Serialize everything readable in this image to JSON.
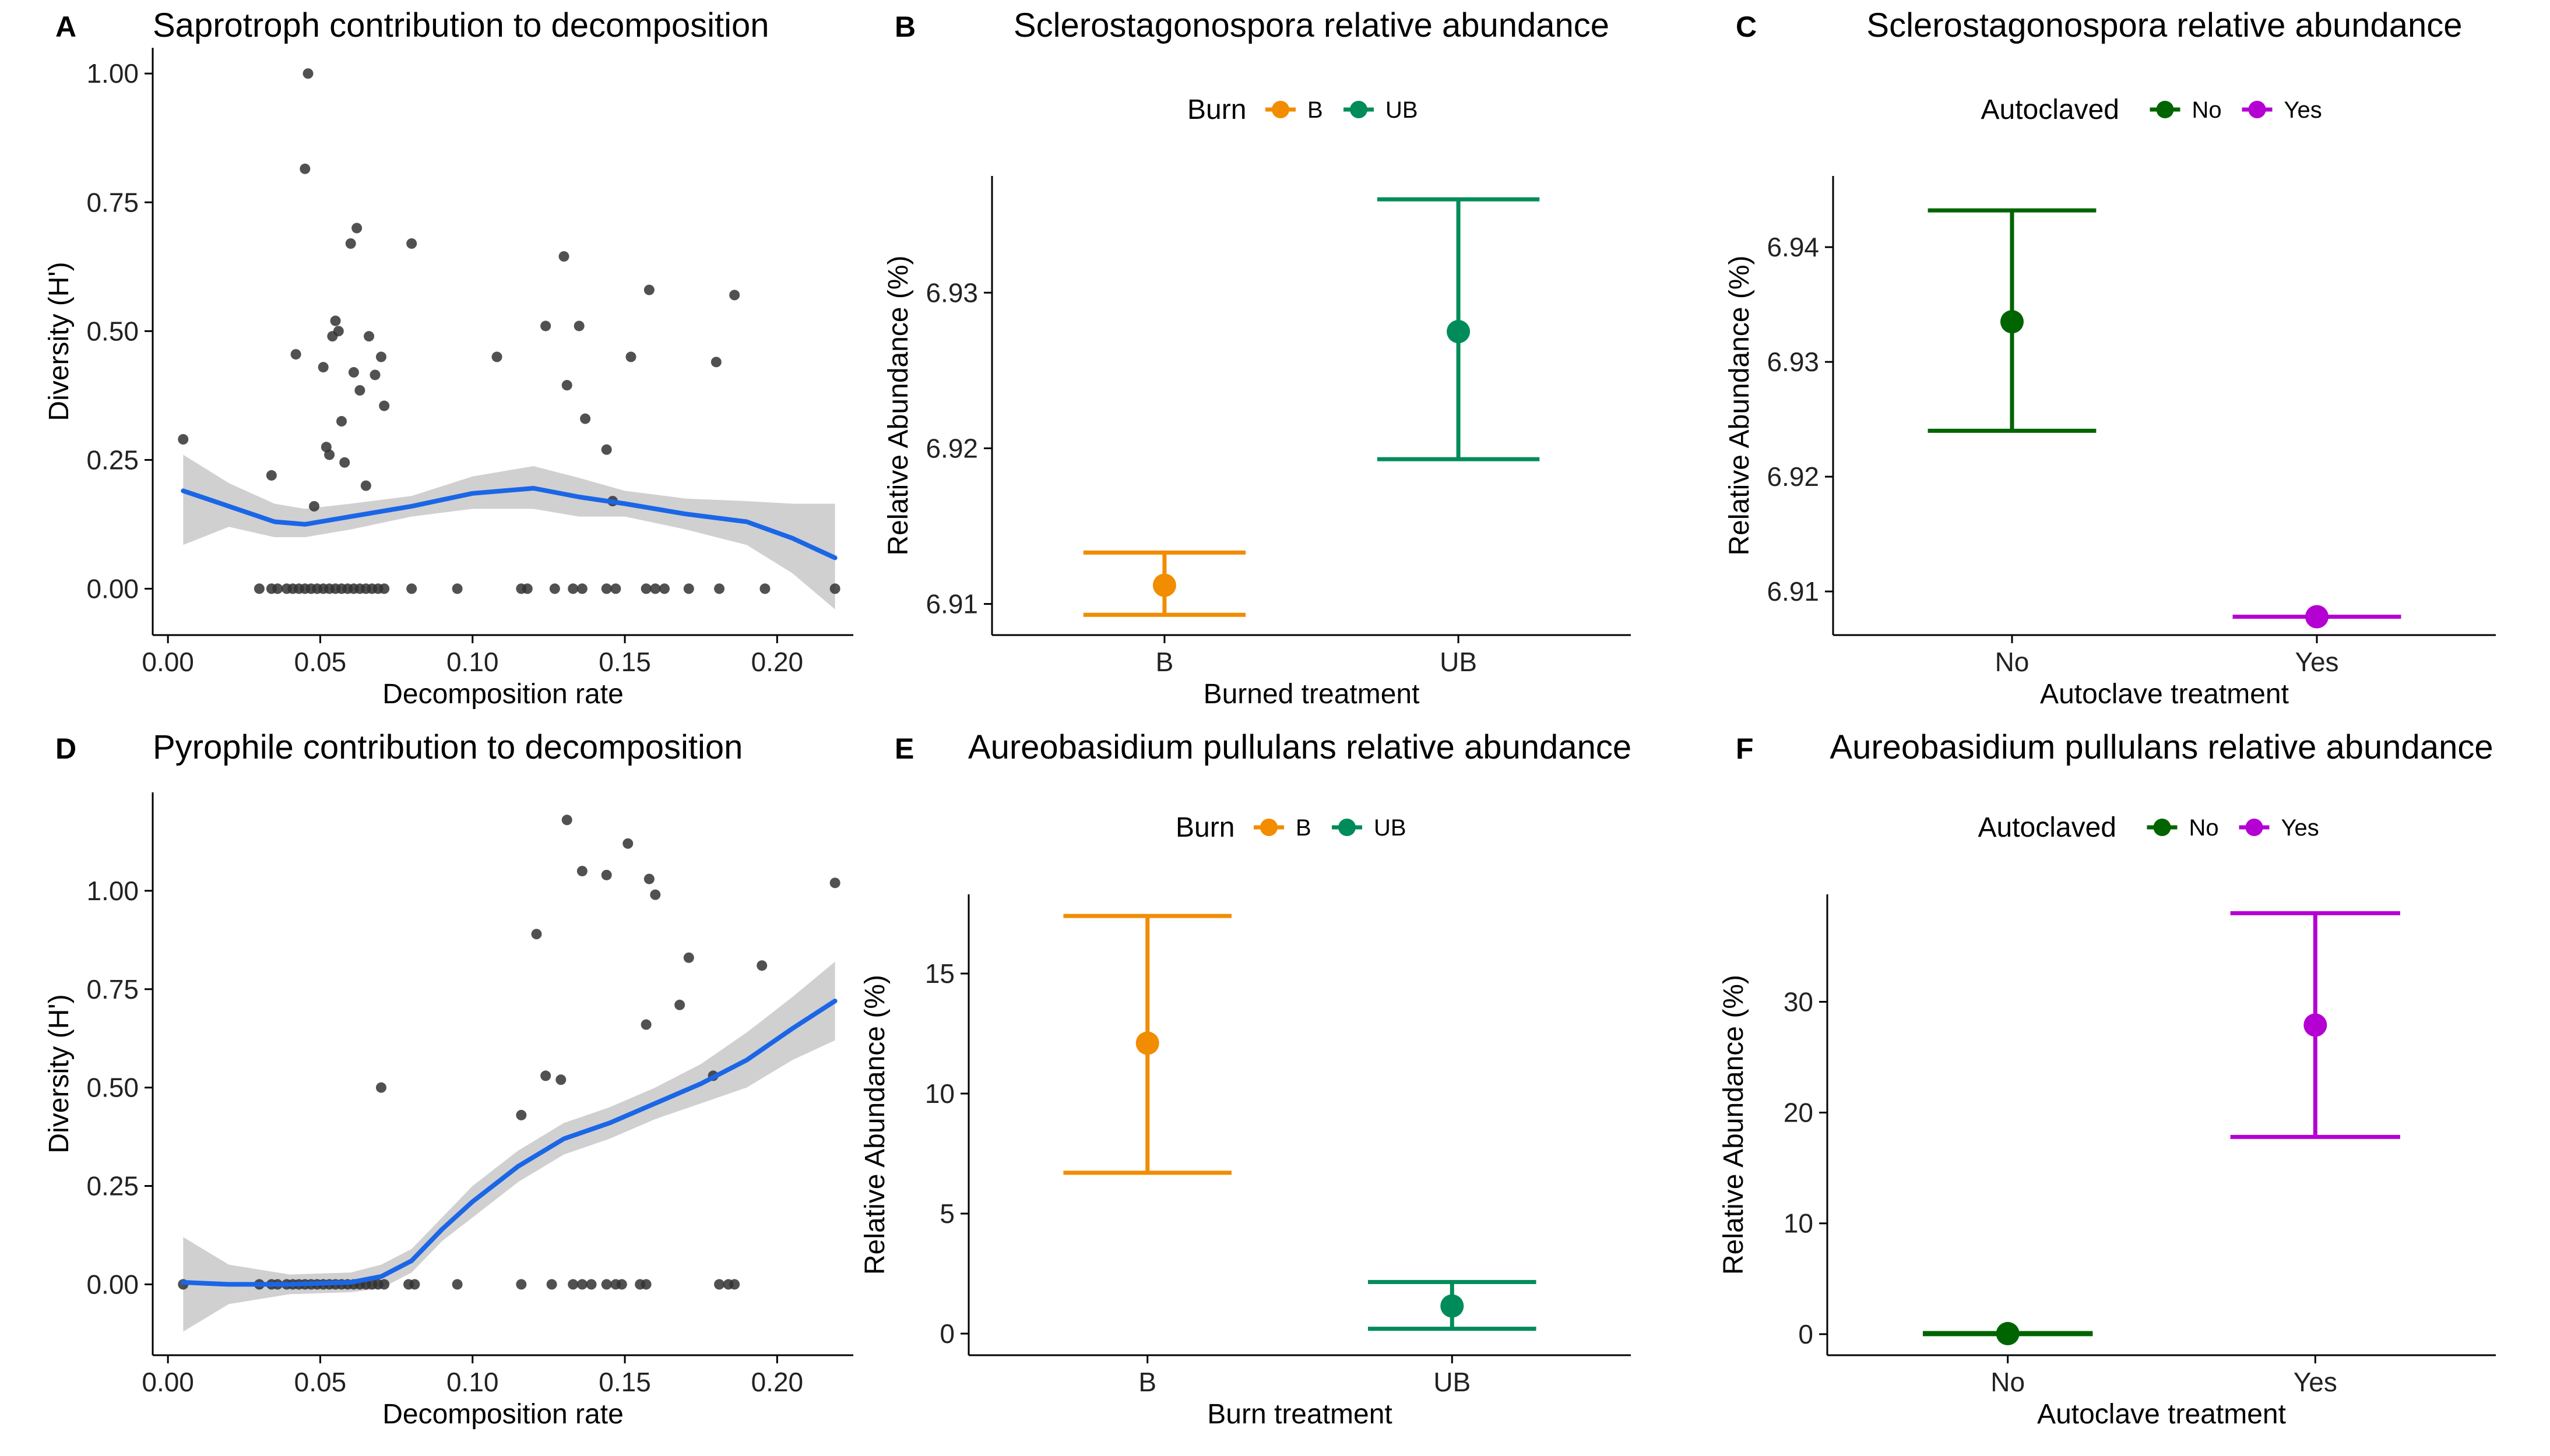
{
  "chart_data": [
    {
      "panel": "A",
      "type": "scatter",
      "title": "Saprotroph contribution to decomposition",
      "xlabel": "Decomposition rate",
      "ylabel": "Diversity (H')",
      "xlim": [
        -0.005,
        0.225
      ],
      "ylim": [
        -0.09,
        1.05
      ],
      "xticks": [
        0.0,
        0.05,
        0.1,
        0.15,
        0.2
      ],
      "xtick_labels": [
        "0.00",
        "0.05",
        "0.10",
        "0.15",
        "0.20"
      ],
      "yticks": [
        0.0,
        0.25,
        0.5,
        0.75,
        1.0
      ],
      "ytick_labels": [
        "0.00",
        "0.25",
        "0.50",
        "0.75",
        "1.00"
      ],
      "points": [
        [
          0.005,
          0.29
        ],
        [
          0.034,
          0.22
        ],
        [
          0.042,
          0.455
        ],
        [
          0.045,
          0.815
        ],
        [
          0.046,
          1.0
        ],
        [
          0.048,
          0.16
        ],
        [
          0.051,
          0.43
        ],
        [
          0.052,
          0.275
        ],
        [
          0.053,
          0.26
        ],
        [
          0.054,
          0.49
        ],
        [
          0.055,
          0.52
        ],
        [
          0.056,
          0.5
        ],
        [
          0.057,
          0.325
        ],
        [
          0.058,
          0.245
        ],
        [
          0.06,
          0.67
        ],
        [
          0.061,
          0.42
        ],
        [
          0.062,
          0.7
        ],
        [
          0.063,
          0.385
        ],
        [
          0.065,
          0.2
        ],
        [
          0.066,
          0.49
        ],
        [
          0.068,
          0.415
        ],
        [
          0.07,
          0.45
        ],
        [
          0.071,
          0.355
        ],
        [
          0.08,
          0.67
        ],
        [
          0.108,
          0.45
        ],
        [
          0.124,
          0.51
        ],
        [
          0.13,
          0.645
        ],
        [
          0.131,
          0.395
        ],
        [
          0.135,
          0.51
        ],
        [
          0.137,
          0.33
        ],
        [
          0.144,
          0.27
        ],
        [
          0.146,
          0.17
        ],
        [
          0.152,
          0.45
        ],
        [
          0.158,
          0.58
        ],
        [
          0.18,
          0.44
        ],
        [
          0.186,
          0.57
        ],
        [
          0.03,
          0.0
        ],
        [
          0.034,
          0.0
        ],
        [
          0.036,
          0.0
        ],
        [
          0.039,
          0.0
        ],
        [
          0.041,
          0.0
        ],
        [
          0.043,
          0.0
        ],
        [
          0.045,
          0.0
        ],
        [
          0.047,
          0.0
        ],
        [
          0.049,
          0.0
        ],
        [
          0.051,
          0.0
        ],
        [
          0.053,
          0.0
        ],
        [
          0.055,
          0.0
        ],
        [
          0.057,
          0.0
        ],
        [
          0.059,
          0.0
        ],
        [
          0.061,
          0.0
        ],
        [
          0.063,
          0.0
        ],
        [
          0.065,
          0.0
        ],
        [
          0.067,
          0.0
        ],
        [
          0.069,
          0.0
        ],
        [
          0.071,
          0.0
        ],
        [
          0.08,
          0.0
        ],
        [
          0.095,
          0.0
        ],
        [
          0.116,
          0.0
        ],
        [
          0.118,
          0.0
        ],
        [
          0.127,
          0.0
        ],
        [
          0.133,
          0.0
        ],
        [
          0.136,
          0.0
        ],
        [
          0.144,
          0.0
        ],
        [
          0.147,
          0.0
        ],
        [
          0.157,
          0.0
        ],
        [
          0.16,
          0.0
        ],
        [
          0.163,
          0.0
        ],
        [
          0.171,
          0.0
        ],
        [
          0.181,
          0.0
        ],
        [
          0.196,
          0.0
        ],
        [
          0.219,
          0.0
        ]
      ],
      "smooth": [
        [
          0.005,
          0.19
        ],
        [
          0.02,
          0.16
        ],
        [
          0.035,
          0.13
        ],
        [
          0.045,
          0.125
        ],
        [
          0.06,
          0.14
        ],
        [
          0.08,
          0.16
        ],
        [
          0.1,
          0.185
        ],
        [
          0.12,
          0.195
        ],
        [
          0.135,
          0.178
        ],
        [
          0.15,
          0.165
        ],
        [
          0.17,
          0.145
        ],
        [
          0.19,
          0.13
        ],
        [
          0.205,
          0.098
        ],
        [
          0.219,
          0.06
        ]
      ],
      "band_upper": [
        [
          0.005,
          0.26
        ],
        [
          0.02,
          0.205
        ],
        [
          0.035,
          0.165
        ],
        [
          0.045,
          0.155
        ],
        [
          0.06,
          0.165
        ],
        [
          0.08,
          0.18
        ],
        [
          0.1,
          0.218
        ],
        [
          0.12,
          0.238
        ],
        [
          0.135,
          0.215
        ],
        [
          0.15,
          0.19
        ],
        [
          0.17,
          0.175
        ],
        [
          0.19,
          0.17
        ],
        [
          0.205,
          0.165
        ],
        [
          0.219,
          0.165
        ]
      ],
      "band_lower": [
        [
          0.005,
          0.085
        ],
        [
          0.02,
          0.12
        ],
        [
          0.035,
          0.1
        ],
        [
          0.045,
          0.1
        ],
        [
          0.06,
          0.115
        ],
        [
          0.08,
          0.14
        ],
        [
          0.1,
          0.155
        ],
        [
          0.12,
          0.155
        ],
        [
          0.135,
          0.14
        ],
        [
          0.15,
          0.14
        ],
        [
          0.17,
          0.115
        ],
        [
          0.19,
          0.085
        ],
        [
          0.205,
          0.03
        ],
        [
          0.219,
          -0.04
        ]
      ],
      "colors": {
        "points": "#333333",
        "smooth": "#1a66e6",
        "band": "#c8c8c8"
      }
    },
    {
      "panel": "B",
      "type": "errorbar",
      "title": "Sclerostagonospora relative abundance",
      "xlabel": "Burned treatment",
      "ylabel": "Relative Abundance (%)",
      "legend_title": "Burn",
      "categories": [
        "B",
        "UB"
      ],
      "means": [
        6.9112,
        6.9275
      ],
      "lower": [
        6.9093,
        6.9193
      ],
      "upper": [
        6.9133,
        6.936
      ],
      "ylim": [
        6.908,
        6.9375
      ],
      "yticks": [
        6.91,
        6.92,
        6.93
      ],
      "ytick_labels": [
        "6.91",
        "6.92",
        "6.93"
      ],
      "colors": [
        "#f28c00",
        "#008c5a"
      ]
    },
    {
      "panel": "C",
      "type": "errorbar",
      "title": "Sclerostagonospora relative abundance",
      "xlabel": "Autoclave treatment",
      "ylabel": "Relative Abundance (%)",
      "legend_title": "Autoclaved",
      "categories": [
        "No",
        "Yes"
      ],
      "means": [
        6.9335,
        6.9078
      ],
      "lower": [
        6.924,
        6.9078
      ],
      "upper": [
        6.9432,
        6.9078
      ],
      "ylim": [
        6.9062,
        6.9462
      ],
      "yticks": [
        6.91,
        6.92,
        6.93,
        6.94
      ],
      "ytick_labels": [
        "6.91",
        "6.92",
        "6.93",
        "6.94"
      ],
      "colors": [
        "#006400",
        "#b400d2"
      ]
    },
    {
      "panel": "D",
      "type": "scatter",
      "title": "Pyrophile contribution to decomposition",
      "xlabel": "Decomposition rate",
      "ylabel": "Diversity (H')",
      "xlim": [
        -0.005,
        0.225
      ],
      "ylim": [
        -0.18,
        1.25
      ],
      "xticks": [
        0.0,
        0.05,
        0.1,
        0.15,
        0.2
      ],
      "xtick_labels": [
        "0.00",
        "0.05",
        "0.10",
        "0.15",
        "0.20"
      ],
      "yticks": [
        0.0,
        0.25,
        0.5,
        0.75,
        1.0
      ],
      "ytick_labels": [
        "0.00",
        "0.25",
        "0.50",
        "0.75",
        "1.00"
      ],
      "points": [
        [
          0.07,
          0.5
        ],
        [
          0.116,
          0.43
        ],
        [
          0.121,
          0.89
        ],
        [
          0.124,
          0.53
        ],
        [
          0.129,
          0.52
        ],
        [
          0.131,
          1.18
        ],
        [
          0.136,
          1.05
        ],
        [
          0.144,
          1.04
        ],
        [
          0.151,
          1.12
        ],
        [
          0.157,
          0.66
        ],
        [
          0.158,
          1.03
        ],
        [
          0.16,
          0.99
        ],
        [
          0.168,
          0.71
        ],
        [
          0.171,
          0.83
        ],
        [
          0.179,
          0.53
        ],
        [
          0.195,
          0.81
        ],
        [
          0.219,
          1.02
        ],
        [
          0.005,
          0.0
        ],
        [
          0.03,
          0.0
        ],
        [
          0.034,
          0.0
        ],
        [
          0.036,
          0.0
        ],
        [
          0.039,
          0.0
        ],
        [
          0.041,
          0.0
        ],
        [
          0.043,
          0.0
        ],
        [
          0.045,
          0.0
        ],
        [
          0.047,
          0.0
        ],
        [
          0.049,
          0.0
        ],
        [
          0.051,
          0.0
        ],
        [
          0.053,
          0.0
        ],
        [
          0.055,
          0.0
        ],
        [
          0.057,
          0.0
        ],
        [
          0.059,
          0.0
        ],
        [
          0.061,
          0.0
        ],
        [
          0.063,
          0.0
        ],
        [
          0.065,
          0.0
        ],
        [
          0.067,
          0.0
        ],
        [
          0.069,
          0.0
        ],
        [
          0.071,
          0.0
        ],
        [
          0.079,
          0.0
        ],
        [
          0.081,
          0.0
        ],
        [
          0.095,
          0.0
        ],
        [
          0.116,
          0.0
        ],
        [
          0.126,
          0.0
        ],
        [
          0.133,
          0.0
        ],
        [
          0.136,
          0.0
        ],
        [
          0.139,
          0.0
        ],
        [
          0.144,
          0.0
        ],
        [
          0.147,
          0.0
        ],
        [
          0.149,
          0.0
        ],
        [
          0.155,
          0.0
        ],
        [
          0.157,
          0.0
        ],
        [
          0.181,
          0.0
        ],
        [
          0.184,
          0.0
        ],
        [
          0.186,
          0.0
        ]
      ],
      "smooth": [
        [
          0.005,
          0.005
        ],
        [
          0.02,
          0.0
        ],
        [
          0.04,
          0.0
        ],
        [
          0.06,
          0.005
        ],
        [
          0.07,
          0.02
        ],
        [
          0.08,
          0.06
        ],
        [
          0.09,
          0.14
        ],
        [
          0.1,
          0.21
        ],
        [
          0.115,
          0.3
        ],
        [
          0.13,
          0.37
        ],
        [
          0.145,
          0.41
        ],
        [
          0.16,
          0.46
        ],
        [
          0.175,
          0.51
        ],
        [
          0.19,
          0.57
        ],
        [
          0.205,
          0.65
        ],
        [
          0.219,
          0.72
        ]
      ],
      "band_upper": [
        [
          0.005,
          0.12
        ],
        [
          0.02,
          0.05
        ],
        [
          0.04,
          0.025
        ],
        [
          0.06,
          0.03
        ],
        [
          0.07,
          0.05
        ],
        [
          0.08,
          0.09
        ],
        [
          0.09,
          0.17
        ],
        [
          0.1,
          0.25
        ],
        [
          0.115,
          0.34
        ],
        [
          0.13,
          0.41
        ],
        [
          0.145,
          0.45
        ],
        [
          0.16,
          0.5
        ],
        [
          0.175,
          0.56
        ],
        [
          0.19,
          0.64
        ],
        [
          0.205,
          0.73
        ],
        [
          0.219,
          0.82
        ]
      ],
      "band_lower": [
        [
          0.005,
          -0.12
        ],
        [
          0.02,
          -0.05
        ],
        [
          0.04,
          -0.025
        ],
        [
          0.06,
          -0.02
        ],
        [
          0.07,
          -0.01
        ],
        [
          0.08,
          0.03
        ],
        [
          0.09,
          0.11
        ],
        [
          0.1,
          0.17
        ],
        [
          0.115,
          0.26
        ],
        [
          0.13,
          0.33
        ],
        [
          0.145,
          0.37
        ],
        [
          0.16,
          0.42
        ],
        [
          0.175,
          0.46
        ],
        [
          0.19,
          0.5
        ],
        [
          0.205,
          0.57
        ],
        [
          0.219,
          0.62
        ]
      ],
      "colors": {
        "points": "#333333",
        "smooth": "#1a66e6",
        "band": "#c8c8c8"
      }
    },
    {
      "panel": "E",
      "type": "errorbar",
      "title": "Aureobasidium pullulans relative abundance",
      "xlabel": "Burn treatment",
      "ylabel": "Relative Abundance (%)",
      "legend_title": "Burn",
      "categories": [
        "B",
        "UB"
      ],
      "means": [
        12.1,
        1.15
      ],
      "lower": [
        6.7,
        0.2
      ],
      "upper": [
        17.4,
        2.15
      ],
      "ylim": [
        -0.9,
        18.3
      ],
      "yticks": [
        0,
        5,
        10,
        15
      ],
      "ytick_labels": [
        "0",
        "5",
        "10",
        "15"
      ],
      "colors": [
        "#f28c00",
        "#008c5a"
      ]
    },
    {
      "panel": "F",
      "type": "errorbar",
      "title": "Aureobasidium pullulans relative abundance",
      "xlabel": "Autoclave treatment",
      "ylabel": "Relative Abundance (%)",
      "legend_title": "Autoclaved",
      "categories": [
        "No",
        "Yes"
      ],
      "means": [
        0.05,
        27.9
      ],
      "lower": [
        0.0,
        17.8
      ],
      "upper": [
        0.1,
        38.0
      ],
      "ylim": [
        -1.9,
        39.7
      ],
      "yticks": [
        0,
        10,
        20,
        30
      ],
      "ytick_labels": [
        "0",
        "10",
        "20",
        "30"
      ],
      "colors": [
        "#006400",
        "#b400d2"
      ]
    }
  ]
}
